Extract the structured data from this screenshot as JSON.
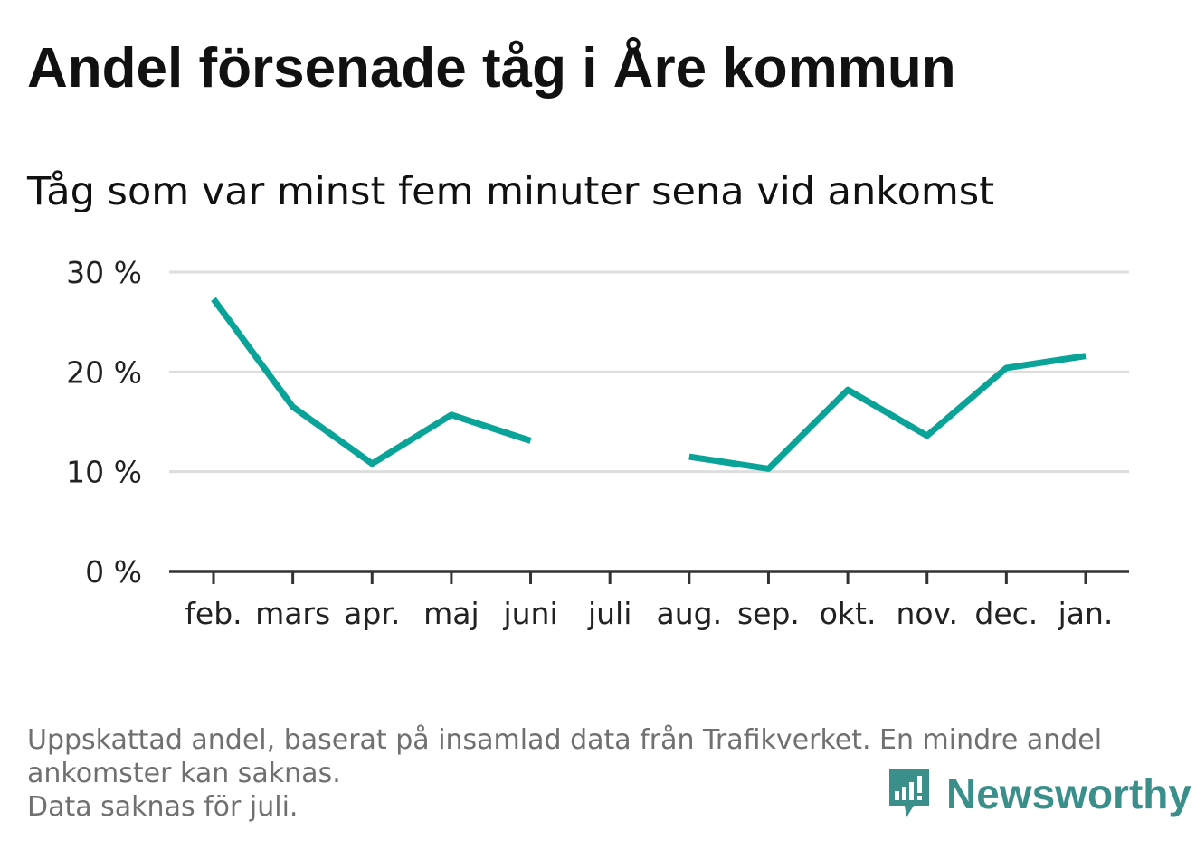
{
  "header": {
    "title": "Andel försenade tåg i Åre kommun",
    "subtitle": "Tåg som var minst fem minuter sena vid ankomst"
  },
  "footer": {
    "note_line1": "Uppskattad andel, baserat på insamlad data från Trafikverket. En mindre andel",
    "note_line2": "ankomster kan saknas.",
    "note_line3": "Data saknas för juli.",
    "brand_name": "Newsworthy",
    "brand_icon": "newsworthy-bar-chart-bubble-icon",
    "brand_color": "#3a8f8a"
  },
  "chart_data": {
    "type": "line",
    "title": "Andel försenade tåg i Åre kommun",
    "subtitle": "Tåg som var minst fem minuter sena vid ankomst",
    "xlabel": "",
    "ylabel": "",
    "categories": [
      "feb.",
      "mars",
      "apr.",
      "maj",
      "juni",
      "juli",
      "aug.",
      "sep.",
      "okt.",
      "nov.",
      "dec.",
      "jan."
    ],
    "series": [
      {
        "values": [
          27.3,
          16.5,
          10.8,
          15.7,
          13.1,
          null,
          11.5,
          10.3,
          18.2,
          13.6,
          20.4,
          21.6
        ],
        "color": "#0aa398"
      }
    ],
    "ylim": [
      0,
      30
    ],
    "yticks": [
      0,
      10,
      20,
      30
    ],
    "ytick_labels": [
      "0 %",
      "10 %",
      "20 %",
      "30 %"
    ],
    "grid": true,
    "legend": "none",
    "colors": {
      "line": "#0aa398",
      "grid": "#dddddd",
      "axis": "#333333",
      "tick_text": "#222222"
    }
  }
}
